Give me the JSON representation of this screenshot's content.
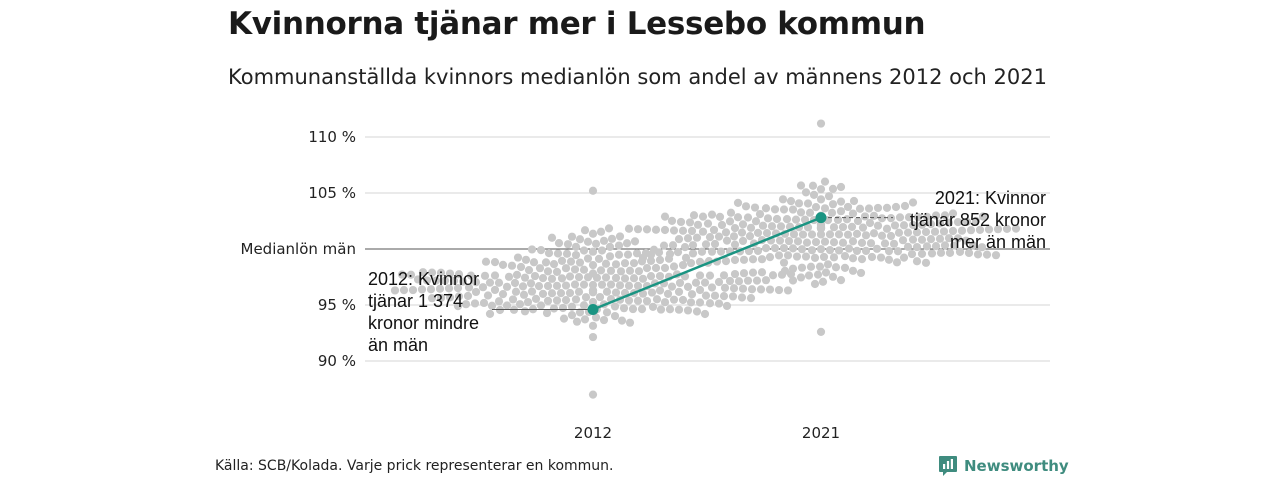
{
  "chart_data": {
    "type": "scatter",
    "title": "Kvinnorna tjänar mer i Lessebo kommun",
    "subtitle": "Kommunanställda kvinnors medianlön som andel av männens 2012 och 2021",
    "categories": [
      "2012",
      "2021"
    ],
    "y_ticks": [
      {
        "value": 90,
        "label": "90 %"
      },
      {
        "value": 95,
        "label": "95 %"
      },
      {
        "value": 100,
        "label": "Medianlön män"
      },
      {
        "value": 105,
        "label": "105 %"
      },
      {
        "value": 110,
        "label": "110 %"
      }
    ],
    "ylim": [
      86.5,
      111.5
    ],
    "grid": true,
    "reference_line": {
      "value": 100,
      "label": "Medianlön män"
    },
    "highlight_series": {
      "color": "#1a9482",
      "points": [
        {
          "x": "2012",
          "y": 94.6
        },
        {
          "x": "2021",
          "y": 102.8
        }
      ]
    },
    "distribution": {
      "color": "#c8c8c8",
      "dot_meaning": "Varje prick representerar en kommun",
      "2012": {
        "range": [
          87.0,
          105.2
        ],
        "median": 96.8
      },
      "2021": {
        "range": [
          92.6,
          111.2
        ],
        "median": 101.3
      }
    },
    "annotations": [
      {
        "id": "2012",
        "lines": [
          "2012: Kvinnor",
          "tjänar 1 374",
          "kronor mindre",
          "än män"
        ]
      },
      {
        "id": "2021",
        "lines": [
          "2021: Kvinnor",
          "tjänar 852 kronor",
          "mer än män"
        ]
      }
    ]
  },
  "source": "Källa: SCB/Kolada. Varje prick representerar en kommun.",
  "brand": {
    "name": "Newsworthy",
    "icon": "bar-chart-logo-icon",
    "color": "#3f8c7f"
  }
}
